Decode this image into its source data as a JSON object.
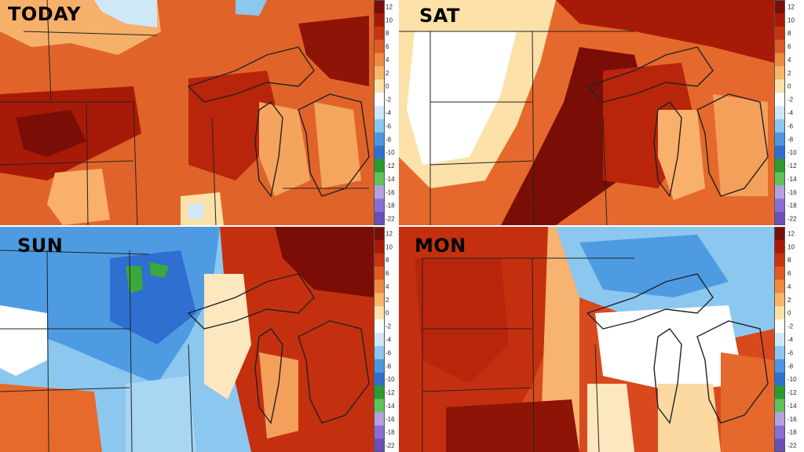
{
  "panels": [
    {
      "title": "TODAY"
    },
    {
      "title": "SAT"
    },
    {
      "title": "SUN"
    },
    {
      "title": "MON"
    }
  ],
  "colorbar": {
    "ticks": [
      "12",
      "10",
      "8",
      "6",
      "4",
      "2",
      "0",
      "-2",
      "-4",
      "-6",
      "-8",
      "-10",
      "-12",
      "-14",
      "-16",
      "-18",
      "-22"
    ],
    "colors": [
      "#7a0e06",
      "#a81a08",
      "#c93310",
      "#e05a22",
      "#ef8a3e",
      "#f7b66a",
      "#fce1a8",
      "#ffffff",
      "#cfe8f7",
      "#8cc7ef",
      "#4b97e0",
      "#2f6fd2",
      "#2a9c2e",
      "#5fc35a",
      "#b6a0e0",
      "#8a6fd2",
      "#6a4fb8"
    ]
  },
  "colors": {
    "deep_red": "#8e1407",
    "red": "#c4300f",
    "orange": "#ec7a36",
    "light_orange": "#f8b06a",
    "pale": "#fde7bf",
    "white": "#ffffff",
    "light_blue": "#a8d6f3",
    "blue": "#4f9be2",
    "deep_blue": "#2e6fd0",
    "green": "#3aa83a"
  }
}
